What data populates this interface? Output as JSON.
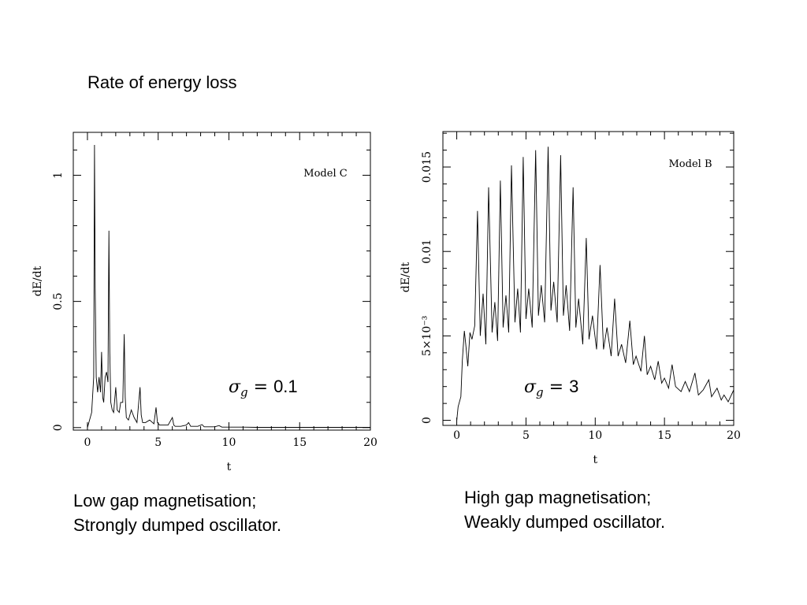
{
  "slide": {
    "title": "Rate of energy loss",
    "caption_left": [
      "Low gap magnetisation;",
      "Strongly dumped oscillator."
    ],
    "caption_right": [
      "High gap magnetisation;",
      "Weakly dumped oscillator."
    ]
  },
  "chart_data": [
    {
      "type": "line",
      "title": "",
      "annotation": "Model C",
      "sigma_label": "σg = 0.1",
      "sigma_value": "0.1",
      "xlabel": "t",
      "ylabel": "dE/dt",
      "xlim": [
        -1,
        20
      ],
      "ylim": [
        -0.01,
        1.17
      ],
      "xticks": [
        "0",
        "5",
        "10",
        "15",
        "20"
      ],
      "yticks": [
        "0",
        "0.5",
        "1"
      ],
      "ytick_values": [
        0,
        0.5,
        1
      ],
      "xtick_values": [
        0,
        5,
        10,
        15,
        20
      ],
      "series": [
        {
          "x": [
            0,
            0.3,
            0.38,
            0.44,
            0.5,
            0.55,
            0.62,
            0.72,
            0.82,
            0.92,
            1.0,
            1.08,
            1.15,
            1.25,
            1.35,
            1.45,
            1.52,
            1.58,
            1.65,
            1.75,
            1.85,
            2.0,
            2.1,
            2.25,
            2.35,
            2.5,
            2.6,
            2.67,
            2.75,
            2.9,
            3.1,
            3.3,
            3.5,
            3.72,
            3.8,
            3.9,
            4.1,
            4.4,
            4.7,
            4.85,
            4.95,
            5.1,
            5.4,
            5.7,
            6.0,
            6.1,
            6.2,
            6.6,
            7.0,
            7.15,
            7.3,
            7.8,
            8.1,
            8.25,
            8.4,
            9.0,
            9.3,
            9.5,
            10.0,
            10.5,
            11.0,
            12.0,
            13.0,
            14.0,
            15.0,
            16.0,
            17.0,
            18.0,
            19.0,
            20.0
          ],
          "y": [
            0,
            0.06,
            0.14,
            0.2,
            1.12,
            0.55,
            0.2,
            0.14,
            0.2,
            0.14,
            0.3,
            0.12,
            0.1,
            0.2,
            0.22,
            0.18,
            0.78,
            0.3,
            0.1,
            0.07,
            0.06,
            0.16,
            0.07,
            0.06,
            0.1,
            0.1,
            0.37,
            0.12,
            0.04,
            0.03,
            0.07,
            0.04,
            0.02,
            0.16,
            0.05,
            0.02,
            0.02,
            0.03,
            0.015,
            0.08,
            0.02,
            0.01,
            0.01,
            0.01,
            0.04,
            0.01,
            0.005,
            0.005,
            0.01,
            0.02,
            0.005,
            0.005,
            0.012,
            0.003,
            0.003,
            0.003,
            0.008,
            0.002,
            0.002,
            0.002,
            0.002,
            0.001,
            0.001,
            0.001,
            0.001,
            0.001,
            0.001,
            0.001,
            0.001,
            0.001
          ]
        }
      ]
    },
    {
      "type": "line",
      "title": "",
      "annotation": "Model B",
      "sigma_label": "σg = 3",
      "sigma_value": "3",
      "xlabel": "t",
      "ylabel": "dE/dt",
      "xlim": [
        -1,
        20
      ],
      "ylim": [
        -0.0003,
        0.0171
      ],
      "xticks": [
        "0",
        "5",
        "10",
        "15",
        "20"
      ],
      "yticks": [
        "0",
        "5×10⁻³",
        "0.01",
        "0.015"
      ],
      "ytick_values": [
        0,
        0.005,
        0.01,
        0.015
      ],
      "xtick_values": [
        0,
        5,
        10,
        15,
        20
      ],
      "series": [
        {
          "x": [
            0,
            0.1,
            0.3,
            0.4,
            0.55,
            0.65,
            0.8,
            0.95,
            1.1,
            1.3,
            1.5,
            1.7,
            1.9,
            2.1,
            2.3,
            2.55,
            2.75,
            2.95,
            3.15,
            3.35,
            3.55,
            3.75,
            3.95,
            4.2,
            4.4,
            4.6,
            4.8,
            5.0,
            5.2,
            5.45,
            5.7,
            5.9,
            6.1,
            6.35,
            6.6,
            6.8,
            7.0,
            7.25,
            7.5,
            7.7,
            7.9,
            8.15,
            8.4,
            8.6,
            8.8,
            9.1,
            9.35,
            9.55,
            9.8,
            10.1,
            10.35,
            10.6,
            10.85,
            11.15,
            11.4,
            11.65,
            11.9,
            12.2,
            12.5,
            12.75,
            12.95,
            13.3,
            13.55,
            13.75,
            14.0,
            14.3,
            14.55,
            14.8,
            15.0,
            15.3,
            15.55,
            15.8,
            16.2,
            16.5,
            16.8,
            17.2,
            17.45,
            17.8,
            18.2,
            18.4,
            18.8,
            19.1,
            19.3,
            19.6,
            20.0
          ],
          "y": [
            0,
            0.0008,
            0.0014,
            0.0035,
            0.0053,
            0.0045,
            0.0032,
            0.0052,
            0.0048,
            0.0056,
            0.0124,
            0.005,
            0.0075,
            0.0045,
            0.0138,
            0.0052,
            0.007,
            0.0047,
            0.0142,
            0.0055,
            0.0074,
            0.0052,
            0.0151,
            0.0058,
            0.0078,
            0.0052,
            0.0156,
            0.006,
            0.0078,
            0.0055,
            0.016,
            0.0062,
            0.008,
            0.0058,
            0.0162,
            0.0065,
            0.0082,
            0.0058,
            0.0157,
            0.0062,
            0.008,
            0.0053,
            0.0138,
            0.0055,
            0.0072,
            0.0045,
            0.0108,
            0.0048,
            0.0062,
            0.0042,
            0.0092,
            0.0042,
            0.0055,
            0.0038,
            0.0072,
            0.0038,
            0.0045,
            0.0034,
            0.0059,
            0.0033,
            0.0038,
            0.0029,
            0.005,
            0.0027,
            0.0032,
            0.0024,
            0.0035,
            0.0022,
            0.0025,
            0.0019,
            0.0033,
            0.002,
            0.0017,
            0.0023,
            0.0017,
            0.0028,
            0.0015,
            0.0018,
            0.0024,
            0.0014,
            0.0019,
            0.0012,
            0.0015,
            0.0011,
            0.0018
          ]
        }
      ]
    }
  ]
}
